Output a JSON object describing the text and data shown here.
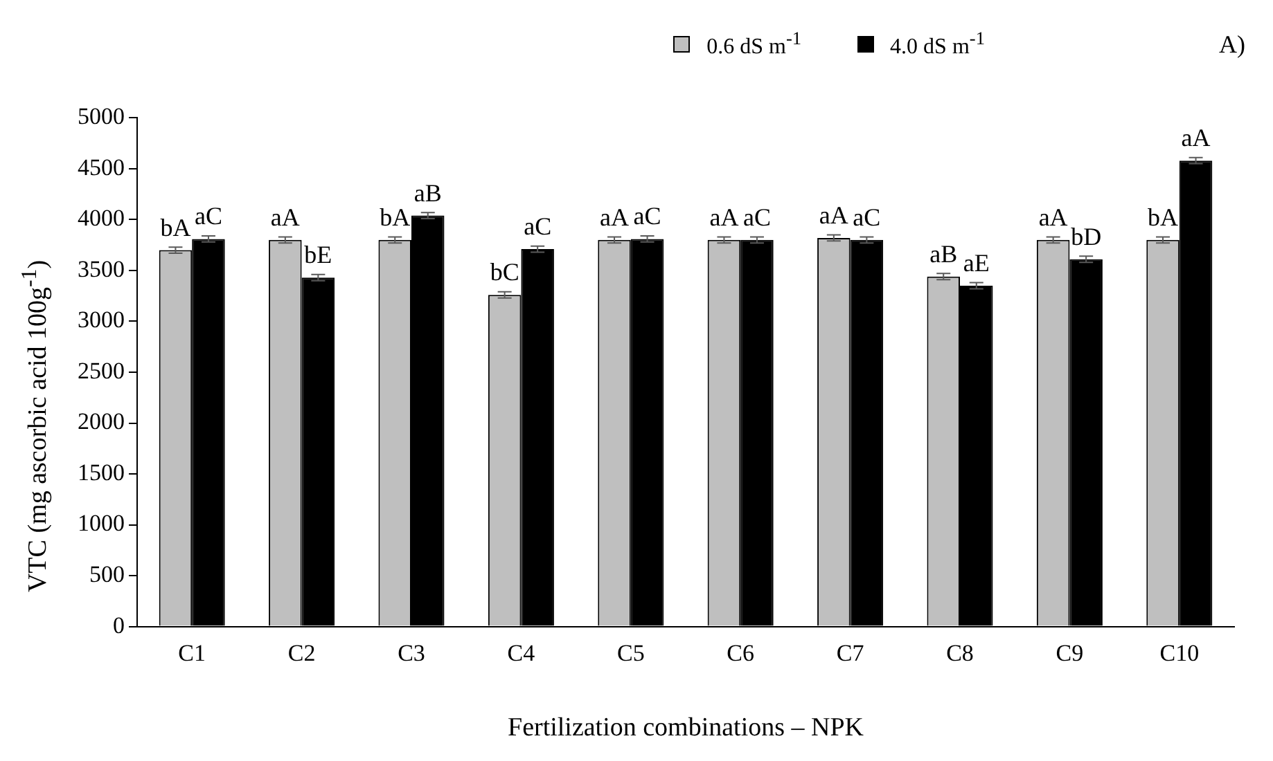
{
  "chart_data": {
    "type": "bar",
    "ylabel": "VTC (mg ascorbic acid 100g$^{-1}$)",
    "xlabel": "Fertilization combinations – NPK",
    "annotations": [
      "A)"
    ],
    "categories": [
      "C1",
      "C2",
      "C3",
      "C4",
      "C5",
      "C6",
      "C7",
      "C8",
      "C9",
      "C10"
    ],
    "series": [
      {
        "name": "0.6 dS m$^{-1}$",
        "color": "#bfbfbf",
        "values": [
          3700,
          3800,
          3800,
          3260,
          3800,
          3800,
          3820,
          3440,
          3800,
          3800
        ],
        "errors": [
          30,
          30,
          30,
          30,
          30,
          30,
          30,
          30,
          30,
          30
        ],
        "value_labels": [
          "bA",
          "aA",
          "bA",
          "bC",
          "aA",
          "aA",
          "aA",
          "aB",
          "aA",
          "bA"
        ]
      },
      {
        "name": "4.0 dS m$^{-1}$",
        "color": "#000000",
        "values": [
          3810,
          3430,
          4040,
          3710,
          3810,
          3800,
          3800,
          3350,
          3610,
          4580
        ],
        "errors": [
          30,
          30,
          30,
          30,
          30,
          30,
          30,
          30,
          30,
          30
        ],
        "value_labels": [
          "aC",
          "bE",
          "aB",
          "aC",
          "aC",
          "aC",
          "aC",
          "aE",
          "bD",
          "aA"
        ]
      }
    ],
    "ylim": [
      0,
      5000
    ],
    "yticks": [
      0,
      500,
      1000,
      1500,
      2000,
      2500,
      3000,
      3500,
      4000,
      4500,
      5000
    ],
    "grid": false,
    "legend": "top right"
  }
}
